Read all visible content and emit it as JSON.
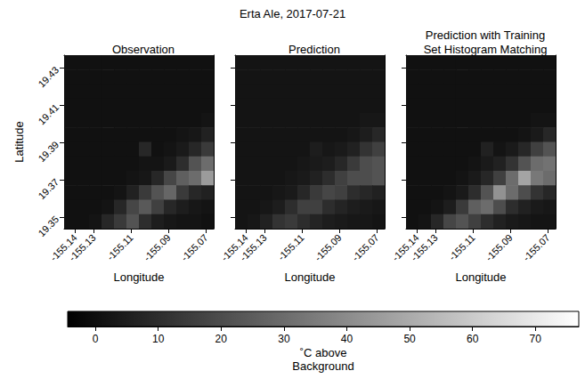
{
  "chart_data": {
    "type": "heatmap",
    "title": "Erta Ale, 2017-07-21",
    "xlabel": "Longitude",
    "ylabel": "Latitude",
    "xlim": [
      -155.146,
      -155.066
    ],
    "ylim": [
      19.344,
      19.437
    ],
    "xticks": [
      -155.14,
      -155.13,
      -155.11,
      -155.09,
      -155.07
    ],
    "yticks": [
      19.35,
      19.37,
      19.39,
      19.41,
      19.43
    ],
    "x": [
      -155.14267,
      -155.136,
      -155.12933,
      -155.12267,
      -155.116,
      -155.10933,
      -155.10267,
      -155.096,
      -155.08933,
      -155.08267,
      -155.076,
      -155.06933
    ],
    "y": [
      19.43313,
      19.42538,
      19.41763,
      19.40988,
      19.40213,
      19.39438,
      19.38663,
      19.37888,
      19.37113,
      19.36338,
      19.35563,
      19.34788
    ],
    "panels": [
      {
        "title": "Observation",
        "values": [
          [
            1,
            1,
            1,
            1,
            1,
            1,
            1,
            1,
            1,
            1,
            1,
            1
          ],
          [
            1,
            1,
            1,
            1,
            1,
            1,
            1,
            1,
            1,
            1,
            1,
            1
          ],
          [
            1,
            1,
            1,
            1,
            1,
            1,
            1,
            1,
            1,
            1,
            1,
            1
          ],
          [
            1,
            1,
            1,
            1,
            1,
            1,
            1,
            1,
            1,
            1,
            1,
            1
          ],
          [
            1,
            1,
            1,
            1,
            1,
            1,
            1,
            1,
            1,
            1,
            1,
            2
          ],
          [
            1,
            1,
            1,
            1,
            1,
            1,
            1,
            1,
            1,
            2,
            3,
            6
          ],
          [
            1,
            1,
            1,
            1,
            1,
            1,
            8,
            1,
            2,
            4,
            8,
            14
          ],
          [
            1,
            1,
            1,
            1,
            1,
            1,
            2,
            2,
            4,
            10,
            22,
            30
          ],
          [
            1,
            1,
            1,
            1,
            1,
            2,
            3,
            8,
            18,
            26,
            30,
            45
          ],
          [
            1,
            1,
            1,
            1,
            2,
            6,
            14,
            22,
            28,
            14,
            8,
            6
          ],
          [
            1,
            1,
            1,
            2,
            8,
            18,
            24,
            16,
            8,
            5,
            3,
            2
          ],
          [
            1,
            1,
            2,
            8,
            14,
            22,
            10,
            5,
            3,
            2,
            2,
            1
          ]
        ]
      },
      {
        "title": "Prediction",
        "values": [
          [
            2,
            2,
            2,
            2,
            2,
            2,
            2,
            2,
            2,
            2,
            2,
            2
          ],
          [
            2,
            2,
            2,
            2,
            2,
            2,
            2,
            2,
            2,
            2,
            2,
            2
          ],
          [
            2,
            2,
            2,
            2,
            2,
            2,
            2,
            2,
            2,
            2,
            2,
            2
          ],
          [
            2,
            2,
            2,
            2,
            2,
            2,
            2,
            2,
            2,
            2,
            2,
            2
          ],
          [
            2,
            2,
            2,
            2,
            2,
            2,
            2,
            2,
            2,
            2,
            3,
            3
          ],
          [
            2,
            2,
            2,
            2,
            2,
            2,
            2,
            2,
            2,
            3,
            5,
            8
          ],
          [
            2,
            2,
            2,
            2,
            2,
            2,
            5,
            3,
            4,
            6,
            12,
            16
          ],
          [
            2,
            2,
            2,
            2,
            2,
            3,
            4,
            5,
            8,
            14,
            20,
            22
          ],
          [
            2,
            2,
            2,
            2,
            3,
            4,
            6,
            10,
            16,
            20,
            20,
            22
          ],
          [
            2,
            2,
            2,
            3,
            4,
            8,
            14,
            18,
            16,
            10,
            8,
            6
          ],
          [
            2,
            2,
            3,
            5,
            10,
            16,
            16,
            10,
            7,
            5,
            4,
            3
          ],
          [
            2,
            3,
            6,
            12,
            14,
            10,
            7,
            5,
            4,
            3,
            3,
            2
          ]
        ]
      },
      {
        "title": "Prediction with Training Set Histogram Matching",
        "values": [
          [
            1,
            1,
            1,
            1,
            1,
            1,
            1,
            1,
            1,
            1,
            1,
            1
          ],
          [
            1,
            1,
            1,
            1,
            1,
            1,
            1,
            1,
            1,
            1,
            1,
            1
          ],
          [
            1,
            1,
            1,
            1,
            1,
            1,
            1,
            1,
            1,
            1,
            1,
            1
          ],
          [
            1,
            1,
            1,
            1,
            1,
            1,
            1,
            1,
            1,
            1,
            1,
            1
          ],
          [
            1,
            1,
            1,
            1,
            1,
            1,
            1,
            1,
            1,
            1,
            2,
            2
          ],
          [
            1,
            1,
            1,
            1,
            1,
            1,
            1,
            1,
            1,
            2,
            4,
            8
          ],
          [
            1,
            1,
            1,
            1,
            1,
            1,
            6,
            2,
            4,
            8,
            16,
            22
          ],
          [
            1,
            1,
            1,
            1,
            1,
            2,
            4,
            6,
            12,
            22,
            30,
            32
          ],
          [
            1,
            1,
            1,
            1,
            2,
            4,
            8,
            16,
            30,
            48,
            34,
            30
          ],
          [
            1,
            1,
            1,
            2,
            4,
            10,
            22,
            42,
            30,
            20,
            12,
            8
          ],
          [
            1,
            1,
            2,
            5,
            14,
            26,
            30,
            20,
            10,
            6,
            4,
            3
          ],
          [
            1,
            2,
            8,
            18,
            22,
            16,
            10,
            6,
            4,
            3,
            2,
            2
          ]
        ]
      }
    ],
    "colorbar": {
      "label": "˚C above\nBackground",
      "range": [
        -4.4,
        76.9
      ],
      "ticks": [
        0,
        10,
        20,
        30,
        40,
        50,
        60,
        70
      ]
    },
    "tick_labels": true
  }
}
